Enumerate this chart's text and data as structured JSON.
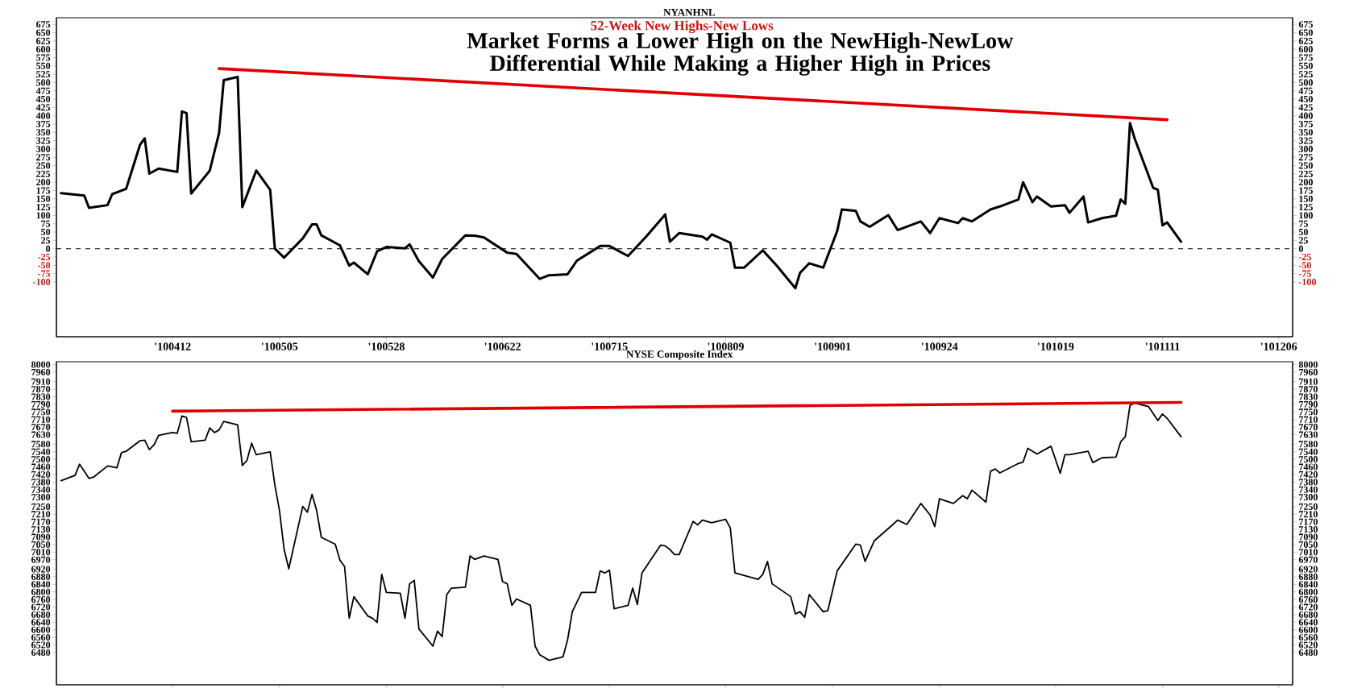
{
  "chart_data": [
    {
      "type": "line",
      "title": "NYANHNL",
      "subtitle": "52-Week New Highs-New Lows",
      "annotations": [
        "Market Forms a Lower High on the NewHigh-NewLow Differential While Making a Higher High in Prices"
      ],
      "x": [
        "2010-03-19",
        "2010-03-24",
        "2010-03-25",
        "2010-03-29",
        "2010-03-30",
        "2010-04-02",
        "2010-04-05",
        "2010-04-06",
        "2010-04-07",
        "2010-04-09",
        "2010-04-13",
        "2010-04-14",
        "2010-04-15",
        "2010-04-16",
        "2010-04-20",
        "2010-04-22",
        "2010-04-23",
        "2010-04-26",
        "2010-04-27",
        "2010-04-30",
        "2010-05-03",
        "2010-05-04",
        "2010-05-06",
        "2010-05-10",
        "2010-05-12",
        "2010-05-13",
        "2010-05-14",
        "2010-05-18",
        "2010-05-20",
        "2010-05-21",
        "2010-05-24",
        "2010-05-26",
        "2010-05-28",
        "2010-06-01",
        "2010-06-02",
        "2010-06-04",
        "2010-06-07",
        "2010-06-09",
        "2010-06-14",
        "2010-06-16",
        "2010-06-18",
        "2010-06-23",
        "2010-06-25",
        "2010-06-30",
        "2010-07-02",
        "2010-07-06",
        "2010-07-08",
        "2010-07-13",
        "2010-07-15",
        "2010-07-19",
        "2010-07-23",
        "2010-07-27",
        "2010-07-28",
        "2010-07-30",
        "2010-08-04",
        "2010-08-05",
        "2010-08-06",
        "2010-08-10",
        "2010-08-11",
        "2010-08-13",
        "2010-08-17",
        "2010-08-20",
        "2010-08-24",
        "2010-08-25",
        "2010-08-27",
        "2010-08-30",
        "2010-09-02",
        "2010-09-03",
        "2010-09-06",
        "2010-09-07",
        "2010-09-09",
        "2010-09-13",
        "2010-09-15",
        "2010-09-20",
        "2010-09-22",
        "2010-09-24",
        "2010-09-28",
        "2010-09-29",
        "2010-10-01",
        "2010-10-05",
        "2010-10-07",
        "2010-10-11",
        "2010-10-12",
        "2010-10-14",
        "2010-10-15",
        "2010-10-18",
        "2010-10-21",
        "2010-10-22",
        "2010-10-25",
        "2010-10-26",
        "2010-10-29",
        "2010-11-01",
        "2010-11-02",
        "2010-11-03",
        "2010-11-04",
        "2010-11-05",
        "2010-11-09",
        "2010-11-10",
        "2010-11-11",
        "2010-11-12",
        "2010-11-15"
      ],
      "series": [
        {
          "color": "#000000",
          "values": [
            167,
            160,
            123,
            131,
            164,
            180,
            313,
            332,
            226,
            241,
            231,
            413,
            408,
            166,
            235,
            348,
            507,
            517,
            125,
            235,
            177,
            0,
            -27,
            31,
            73,
            73,
            40,
            10,
            -51,
            -42,
            -77,
            -8,
            5,
            1,
            13,
            -38,
            -87,
            -31,
            40,
            39,
            34,
            -12,
            -16,
            -91,
            -80,
            -77,
            -36,
            8,
            8,
            -22,
            38,
            103,
            21,
            47,
            36,
            27,
            43,
            18,
            -57,
            -57,
            -5,
            -51,
            -119,
            -73,
            -44,
            -57,
            53,
            118,
            114,
            82,
            66,
            101,
            56,
            82,
            47,
            92,
            77,
            92,
            82,
            118,
            127,
            148,
            200,
            140,
            157,
            127,
            131,
            108,
            157,
            79,
            92,
            99,
            148,
            135,
            378,
            332,
            183,
            177,
            70,
            79,
            21
          ]
        },
        {
          "type": "line",
          "color": "#e00000",
          "x": [
            "2010-04-22",
            "2010-11-12"
          ],
          "values": [
            542,
            388
          ]
        }
      ],
      "xlim": [
        "2010-03-18",
        "2010-12-09"
      ],
      "xticks": [
        {
          "value": "2010-04-12",
          "label": "'100412"
        },
        {
          "value": "2010-05-05",
          "label": "'100505"
        },
        {
          "value": "2010-05-28",
          "label": "'100528"
        },
        {
          "value": "2010-06-22",
          "label": "'100622"
        },
        {
          "value": "2010-07-15",
          "label": "'100715"
        },
        {
          "value": "2010-08-09",
          "label": "'100809"
        },
        {
          "value": "2010-09-01",
          "label": "'100901"
        },
        {
          "value": "2010-09-24",
          "label": "'100924"
        },
        {
          "value": "2010-10-19",
          "label": "'101019"
        },
        {
          "value": "2010-11-11",
          "label": "'101111"
        },
        {
          "value": "2010-12-06",
          "label": "'101206"
        }
      ],
      "ylim": [
        -265,
        695
      ],
      "yticks": [
        -100,
        -75,
        -50,
        -25,
        0,
        25,
        50,
        75,
        100,
        125,
        150,
        175,
        200,
        225,
        250,
        275,
        300,
        325,
        350,
        375,
        400,
        425,
        450,
        475,
        500,
        525,
        550,
        575,
        600,
        625,
        650,
        675
      ],
      "y2lim": [
        -265,
        695
      ],
      "y2ticks": [
        -100,
        -75,
        -50,
        -25,
        0,
        25,
        50,
        75,
        100,
        125,
        150,
        175,
        200,
        225,
        250,
        275,
        300,
        325,
        350,
        375,
        400,
        425,
        450,
        475,
        500,
        525,
        550,
        575,
        600,
        625,
        650,
        675
      ],
      "ref_lines": [
        {
          "axis": "y",
          "value": 0,
          "color": "#000000",
          "line_style": "dashed"
        }
      ]
    },
    {
      "type": "line",
      "title": "NYSE Composite Index",
      "x": [
        "2010-03-19",
        "2010-03-22",
        "2010-03-23",
        "2010-03-25",
        "2010-03-26",
        "2010-03-29",
        "2010-03-31",
        "2010-04-01",
        "2010-04-02",
        "2010-04-05",
        "2010-04-06",
        "2010-04-07",
        "2010-04-08",
        "2010-04-09",
        "2010-04-12",
        "2010-04-13",
        "2010-04-14",
        "2010-04-15",
        "2010-04-16",
        "2010-04-19",
        "2010-04-20",
        "2010-04-21",
        "2010-04-22",
        "2010-04-23",
        "2010-04-26",
        "2010-04-27",
        "2010-04-28",
        "2010-04-29",
        "2010-04-30",
        "2010-05-03",
        "2010-05-04",
        "2010-05-05",
        "2010-05-06",
        "2010-05-07",
        "2010-05-10",
        "2010-05-11",
        "2010-05-12",
        "2010-05-13",
        "2010-05-14",
        "2010-05-17",
        "2010-05-18",
        "2010-05-19",
        "2010-05-20",
        "2010-05-21",
        "2010-05-24",
        "2010-05-25",
        "2010-05-26",
        "2010-05-27",
        "2010-05-28",
        "2010-05-31",
        "2010-06-01",
        "2010-06-02",
        "2010-06-03",
        "2010-06-04",
        "2010-06-07",
        "2010-06-08",
        "2010-06-09",
        "2010-06-10",
        "2010-06-11",
        "2010-06-14",
        "2010-06-15",
        "2010-06-16",
        "2010-06-18",
        "2010-06-21",
        "2010-06-22",
        "2010-06-23",
        "2010-06-24",
        "2010-06-25",
        "2010-06-28",
        "2010-06-29",
        "2010-06-30",
        "2010-07-02",
        "2010-07-05",
        "2010-07-06",
        "2010-07-07",
        "2010-07-09",
        "2010-07-12",
        "2010-07-13",
        "2010-07-14",
        "2010-07-15",
        "2010-07-16",
        "2010-07-19",
        "2010-07-20",
        "2010-07-21",
        "2010-07-22",
        "2010-07-26",
        "2010-07-27",
        "2010-07-28",
        "2010-07-29",
        "2010-07-30",
        "2010-08-02",
        "2010-08-03",
        "2010-08-04",
        "2010-08-06",
        "2010-08-09",
        "2010-08-10",
        "2010-08-11",
        "2010-08-16",
        "2010-08-17",
        "2010-08-18",
        "2010-08-19",
        "2010-08-23",
        "2010-08-24",
        "2010-08-25",
        "2010-08-26",
        "2010-08-27",
        "2010-08-30",
        "2010-08-31",
        "2010-09-02",
        "2010-09-06",
        "2010-09-07",
        "2010-09-08",
        "2010-09-10",
        "2010-09-14",
        "2010-09-15",
        "2010-09-17",
        "2010-09-20",
        "2010-09-22",
        "2010-09-23",
        "2010-09-24",
        "2010-09-27",
        "2010-09-29",
        "2010-09-30",
        "2010-10-01",
        "2010-10-04",
        "2010-10-05",
        "2010-10-06",
        "2010-10-07",
        "2010-10-11",
        "2010-10-12",
        "2010-10-13",
        "2010-10-15",
        "2010-10-18",
        "2010-10-20",
        "2010-10-21",
        "2010-10-22",
        "2010-10-26",
        "2010-10-27",
        "2010-10-29",
        "2010-11-01",
        "2010-11-02",
        "2010-11-03",
        "2010-11-04",
        "2010-11-05",
        "2010-11-08",
        "2010-11-10",
        "2010-11-11",
        "2010-11-12",
        "2010-11-15"
      ],
      "series": [
        {
          "color": "#000000",
          "values": [
            7387,
            7415,
            7474,
            7399,
            7406,
            7465,
            7455,
            7535,
            7542,
            7598,
            7601,
            7551,
            7576,
            7626,
            7641,
            7637,
            7728,
            7721,
            7592,
            7601,
            7666,
            7641,
            7655,
            7700,
            7682,
            7467,
            7494,
            7585,
            7524,
            7539,
            7365,
            7229,
            7024,
            6922,
            7251,
            7221,
            7315,
            7229,
            7088,
            7052,
            6968,
            6934,
            6661,
            6775,
            6673,
            6661,
            6639,
            6893,
            6797,
            6793,
            6661,
            6843,
            6861,
            6605,
            6514,
            6593,
            6564,
            6786,
            6820,
            6825,
            6990,
            6972,
            6990,
            6972,
            6854,
            6843,
            6729,
            6763,
            6729,
            6514,
            6468,
            6439,
            6457,
            6548,
            6695,
            6797,
            6797,
            6911,
            6900,
            6915,
            6711,
            6729,
            6820,
            6734,
            6900,
            7047,
            7043,
            7024,
            6997,
            6997,
            7172,
            7154,
            7179,
            7165,
            7183,
            7138,
            6900,
            6866,
            6893,
            6961,
            6843,
            6775,
            6684,
            6695,
            6666,
            6786,
            6695,
            6702,
            6911,
            7052,
            7047,
            6961,
            7070,
            7156,
            7179,
            7156,
            7267,
            7206,
            7145,
            7292,
            7267,
            7308,
            7292,
            7337,
            7274,
            7437,
            7449,
            7428,
            7478,
            7485,
            7558,
            7528,
            7569,
            7426,
            7524,
            7524,
            7542,
            7483,
            7508,
            7512,
            7592,
            7619,
            7784,
            7796,
            7778,
            7705,
            7739,
            7716,
            7619
          ]
        },
        {
          "type": "line",
          "color": "#e00000",
          "x": [
            "2010-04-12",
            "2010-11-15"
          ],
          "values": [
            7754,
            7800
          ]
        }
      ],
      "xlim": [
        "2010-03-18",
        "2010-12-09"
      ],
      "xticks": [
        {
          "value": "2010-04-12",
          "label": null
        },
        {
          "value": "2010-05-05",
          "label": null
        },
        {
          "value": "2010-05-28",
          "label": null
        },
        {
          "value": "2010-06-22",
          "label": null
        },
        {
          "value": "2010-07-15",
          "label": null
        },
        {
          "value": "2010-08-09",
          "label": null
        },
        {
          "value": "2010-09-01",
          "label": null
        },
        {
          "value": "2010-09-24",
          "label": null
        },
        {
          "value": "2010-10-19",
          "label": null
        },
        {
          "value": "2010-11-11",
          "label": null
        },
        {
          "value": "2010-12-06",
          "label": null
        }
      ],
      "ylim": [
        6310,
        8015
      ],
      "yticks": [
        6480,
        6520,
        6560,
        6600,
        6640,
        6680,
        6720,
        6760,
        6800,
        6840,
        6880,
        6920,
        6970,
        7010,
        7050,
        7090,
        7130,
        7170,
        7210,
        7250,
        7300,
        7340,
        7380,
        7420,
        7460,
        7500,
        7540,
        7580,
        7630,
        7670,
        7710,
        7750,
        7790,
        7830,
        7870,
        7910,
        7960,
        8000
      ],
      "y2lim": [
        6310,
        8015
      ],
      "y2ticks": [
        6480,
        6520,
        6560,
        6600,
        6640,
        6680,
        6720,
        6760,
        6800,
        6840,
        6880,
        6920,
        6970,
        7010,
        7050,
        7090,
        7130,
        7170,
        7210,
        7250,
        7300,
        7340,
        7380,
        7420,
        7460,
        7500,
        7540,
        7580,
        7630,
        7670,
        7710,
        7750,
        7790,
        7830,
        7870,
        7910,
        7960,
        8000
      ],
      "tick_labels": "y"
    }
  ]
}
